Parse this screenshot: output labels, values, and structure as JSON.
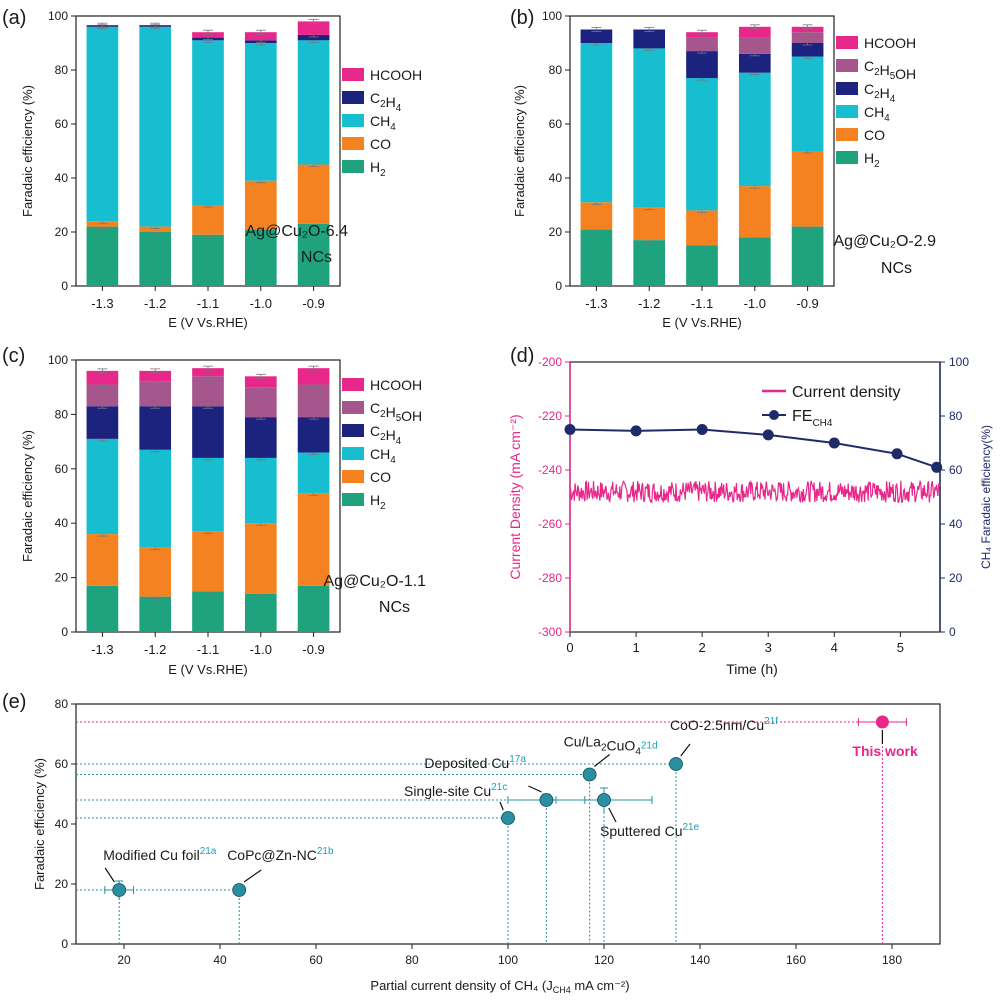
{
  "colors": {
    "HCOOH": "#e8278a",
    "C2H5OH": "#a5568d",
    "C2H4": "#1c237e",
    "CH4": "#17becf",
    "CO": "#f58220",
    "H2": "#1fa37e",
    "current": "#e8278a",
    "fe": "#1f2a6b",
    "scatter": "#2a8fa0",
    "this_work": "#e8278a"
  },
  "chart_data": [
    {
      "panel": "(a)",
      "type": "bar",
      "stacked": true,
      "categories": [
        "-1.3",
        "-1.2",
        "-1.1",
        "-1.0",
        "-0.9"
      ],
      "xlabel": "E (V Vs.RHE)",
      "ylabel": "Faradaic efficiency (%)",
      "ylim": [
        0,
        100
      ],
      "yticks": [
        "0",
        "20",
        "40",
        "60",
        "80",
        "100"
      ],
      "annotation": [
        "Ag@Cu₂O-6.4",
        "NCs"
      ],
      "legend": [
        "HCOOH",
        "C₂H₄",
        "CH₄",
        "CO",
        "H₂"
      ],
      "series": [
        {
          "name": "H₂",
          "key": "H2",
          "values": [
            22,
            20,
            19,
            21,
            23
          ]
        },
        {
          "name": "CO",
          "key": "CO",
          "values": [
            2,
            2,
            11,
            18,
            22
          ]
        },
        {
          "name": "CH₄",
          "key": "CH4",
          "values": [
            72,
            74,
            61,
            51,
            46
          ]
        },
        {
          "name": "C₂H₄",
          "key": "C2H4",
          "values": [
            0.6,
            0.6,
            1,
            1,
            2
          ]
        },
        {
          "name": "HCOOH",
          "key": "HCOOH",
          "values": [
            0,
            0,
            2,
            3,
            5
          ]
        }
      ]
    },
    {
      "panel": "(b)",
      "type": "bar",
      "stacked": true,
      "categories": [
        "-1.3",
        "-1.2",
        "-1.1",
        "-1.0",
        "-0.9"
      ],
      "xlabel": "E (V Vs.RHE)",
      "ylabel": "Faradaic efficiency (%)",
      "ylim": [
        0,
        100
      ],
      "yticks": [
        "0",
        "20",
        "40",
        "60",
        "80",
        "100"
      ],
      "annotation": [
        "Ag@Cu₂O-2.9",
        "NCs"
      ],
      "legend": [
        "HCOOH",
        "C₂H₅OH",
        "C₂H₄",
        "CH₄",
        "CO",
        "H₂"
      ],
      "series": [
        {
          "name": "H₂",
          "key": "H2",
          "values": [
            21,
            17,
            15,
            18,
            22
          ]
        },
        {
          "name": "CO",
          "key": "CO",
          "values": [
            10,
            12,
            13,
            19,
            28
          ]
        },
        {
          "name": "CH₄",
          "key": "CH4",
          "values": [
            59,
            59,
            49,
            42,
            35
          ]
        },
        {
          "name": "C₂H₄",
          "key": "C2H4",
          "values": [
            5,
            7,
            10,
            7,
            5
          ]
        },
        {
          "name": "C₂H₅OH",
          "key": "C2H5OH",
          "values": [
            0,
            0,
            5,
            6,
            4
          ]
        },
        {
          "name": "HCOOH",
          "key": "HCOOH",
          "values": [
            0,
            0,
            2,
            4,
            2
          ]
        }
      ]
    },
    {
      "panel": "(c)",
      "type": "bar",
      "stacked": true,
      "categories": [
        "-1.3",
        "-1.2",
        "-1.1",
        "-1.0",
        "-0.9"
      ],
      "xlabel": "E (V Vs.RHE)",
      "ylabel": "Faradaic efficiency (%)",
      "ylim": [
        0,
        100
      ],
      "yticks": [
        "0",
        "20",
        "40",
        "60",
        "80",
        "100"
      ],
      "annotation": [
        "Ag@Cu₂O-1.1",
        "NCs"
      ],
      "legend": [
        "HCOOH",
        "C₂H₅OH",
        "C₂H₄",
        "CH₄",
        "CO",
        "H₂"
      ],
      "series": [
        {
          "name": "H₂",
          "key": "H2",
          "values": [
            17,
            13,
            15,
            14,
            17
          ]
        },
        {
          "name": "CO",
          "key": "CO",
          "values": [
            19,
            18,
            22,
            26,
            34
          ]
        },
        {
          "name": "CH₄",
          "key": "CH4",
          "values": [
            35,
            36,
            27,
            24,
            15
          ]
        },
        {
          "name": "C₂H₄",
          "key": "C2H4",
          "values": [
            12,
            16,
            19,
            15,
            13
          ]
        },
        {
          "name": "C₂H₅OH",
          "key": "C2H5OH",
          "values": [
            8,
            9,
            11,
            11,
            12
          ]
        },
        {
          "name": "HCOOH",
          "key": "HCOOH",
          "values": [
            5,
            4,
            3,
            4,
            6
          ]
        }
      ]
    },
    {
      "panel": "(d)",
      "type": "line",
      "xlabel": "Time (h)",
      "ylabel_left": "Current Density (mA cm⁻²)",
      "ylabel_right": "CH₄ Faradaic efficiency(%)",
      "xlim": [
        0,
        5.6
      ],
      "xticks": [
        "0",
        "1",
        "2",
        "3",
        "4",
        "5"
      ],
      "ylim_left": [
        -300,
        -200
      ],
      "yticks_left": [
        "-300",
        "-280",
        "-260",
        "-240",
        "-220",
        "-200"
      ],
      "ylim_right": [
        0,
        100
      ],
      "yticks_right": [
        "0",
        "20",
        "40",
        "60",
        "80",
        "100"
      ],
      "legend": [
        "Current density",
        "FE",
        "CH4"
      ],
      "series": [
        {
          "name": "Current density",
          "axis": "left",
          "mean": -248,
          "noise_amplitude": 4
        },
        {
          "name": "FECH4",
          "axis": "right",
          "x": [
            0,
            1,
            2,
            3,
            4,
            4.95,
            5.55
          ],
          "y": [
            75,
            74.5,
            75,
            73,
            70,
            66,
            61
          ]
        }
      ]
    },
    {
      "panel": "(e)",
      "type": "scatter",
      "xlabel": "Partial current density of CH₄ (J",
      "xlabel_sub": "CH4",
      "xlabel_tail": " mA cm⁻²)",
      "ylabel": "Faradaic efficiency (%)",
      "xlim": [
        10,
        190
      ],
      "xticks": [
        "20",
        "40",
        "60",
        "80",
        "100",
        "120",
        "140",
        "160",
        "180"
      ],
      "ylim": [
        0,
        80
      ],
      "yticks": [
        "0",
        "20",
        "40",
        "60",
        "80"
      ],
      "points": [
        {
          "label": "Modified Cu foil",
          "ref": "21a",
          "x": 19,
          "y": 18,
          "xerr": 3,
          "yerr": 3
        },
        {
          "label": "CoPc@Zn-NC",
          "ref": "21b",
          "x": 44,
          "y": 18,
          "xerr": 0,
          "yerr": 0
        },
        {
          "label": "Single-site Cu",
          "ref": "21c",
          "x": 100,
          "y": 42,
          "xerr": 0,
          "yerr": 0
        },
        {
          "label": "Deposited Cu",
          "ref": "17a",
          "x": 108,
          "y": 48,
          "xerr": 8,
          "yerr": 2
        },
        {
          "label": "Cu/La₂CuO₄",
          "ref": "21d",
          "x": 117,
          "y": 56.5,
          "xerr": 0,
          "yerr": 0
        },
        {
          "label": "Sputtered Cu",
          "ref": "21e",
          "x": 120,
          "y": 48,
          "xerr": 10,
          "yerr": 4
        },
        {
          "label": "CoO-2.5nm/Cu",
          "ref": "21f",
          "x": 135,
          "y": 60,
          "xerr": 0,
          "yerr": 0
        },
        {
          "label": "This work",
          "ref": "",
          "x": 178,
          "y": 74,
          "xerr": 5,
          "yerr": 0
        }
      ]
    }
  ]
}
